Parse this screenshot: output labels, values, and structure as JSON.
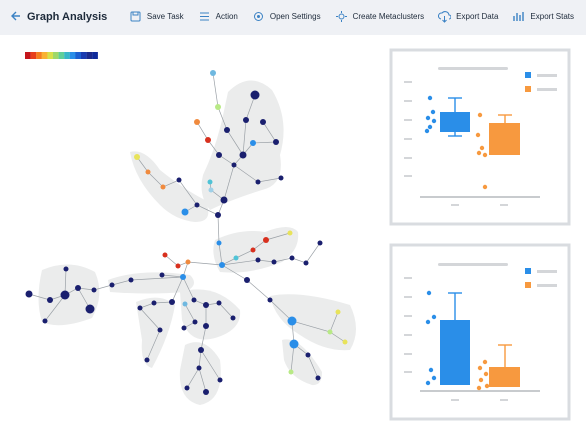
{
  "header": {
    "title": "Graph Analysis",
    "actions": [
      "Save Task",
      "Action",
      "Open Settings",
      "Create Metaclusters",
      "Export Data",
      "Export Stats"
    ]
  }
}
